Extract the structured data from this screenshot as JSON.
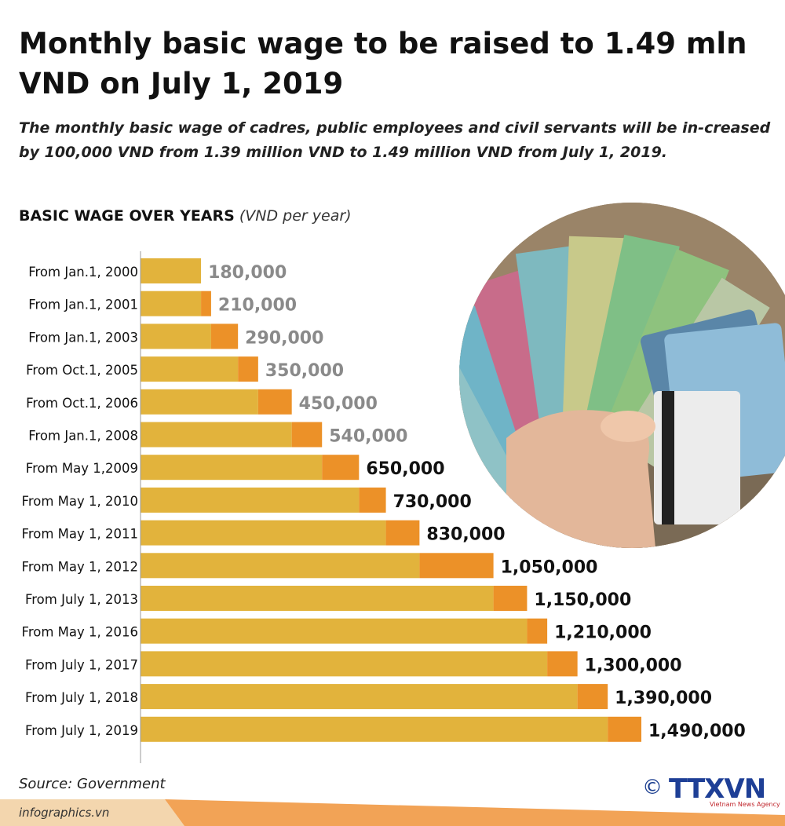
{
  "title": "Monthly basic wage to be raised to 1.49 mln VND on July 1, 2019",
  "subtitle": "The monthly basic wage of cadres, public employees and civil servants will be in-creased by 100,000 VND from 1.39 million VND to 1.49 million VND from July 1, 2019.",
  "chart_heading": "BASIC WAGE OVER YEARS",
  "chart_unit": "(VND per year)",
  "source": "Source: Government",
  "website": "infographics.vn",
  "logo": {
    "symbol": "©",
    "text": "TTXVN",
    "subtext": "Vietnam News Agency"
  },
  "colors": {
    "bar": "#e2b33c",
    "increase": "#ec9128",
    "label_dark": "#111111",
    "label_grey": "#8a8a8a",
    "brand": "#1e3f96"
  },
  "chart_data": {
    "type": "bar",
    "orientation": "horizontal",
    "title": "BASIC WAGE OVER YEARS",
    "unit": "(VND per year)",
    "categories": [
      "From Jan.1, 2000",
      "From Jan.1, 2001",
      "From Jan.1, 2003",
      "From Oct.1, 2005",
      "From Oct.1, 2006",
      "From Jan.1, 2008",
      "From May 1,2009",
      "From May 1, 2010",
      "From May 1, 2011",
      "From May 1, 2012",
      "From July 1, 2013",
      "From May 1, 2016",
      "From July 1, 2017",
      "From July 1, 2018",
      "From July 1, 2019"
    ],
    "values": [
      180000,
      210000,
      290000,
      350000,
      450000,
      540000,
      650000,
      730000,
      830000,
      1050000,
      1150000,
      1210000,
      1300000,
      1390000,
      1490000
    ],
    "value_labels": [
      "180,000",
      "210,000",
      "290,000",
      "350,000",
      "450,000",
      "540,000",
      "650,000",
      "730,000",
      "830,000",
      "1,050,000",
      "1,150,000",
      "1,210,000",
      "1,300,000",
      "1,390,000",
      "1,490,000"
    ],
    "label_color_groups": [
      "grey",
      "grey",
      "grey",
      "grey",
      "grey",
      "grey",
      "dark",
      "dark",
      "dark",
      "dark",
      "dark",
      "dark",
      "dark",
      "dark",
      "dark"
    ],
    "increase_highlight": true,
    "xlim": [
      0,
      1490000
    ],
    "grid": false
  }
}
